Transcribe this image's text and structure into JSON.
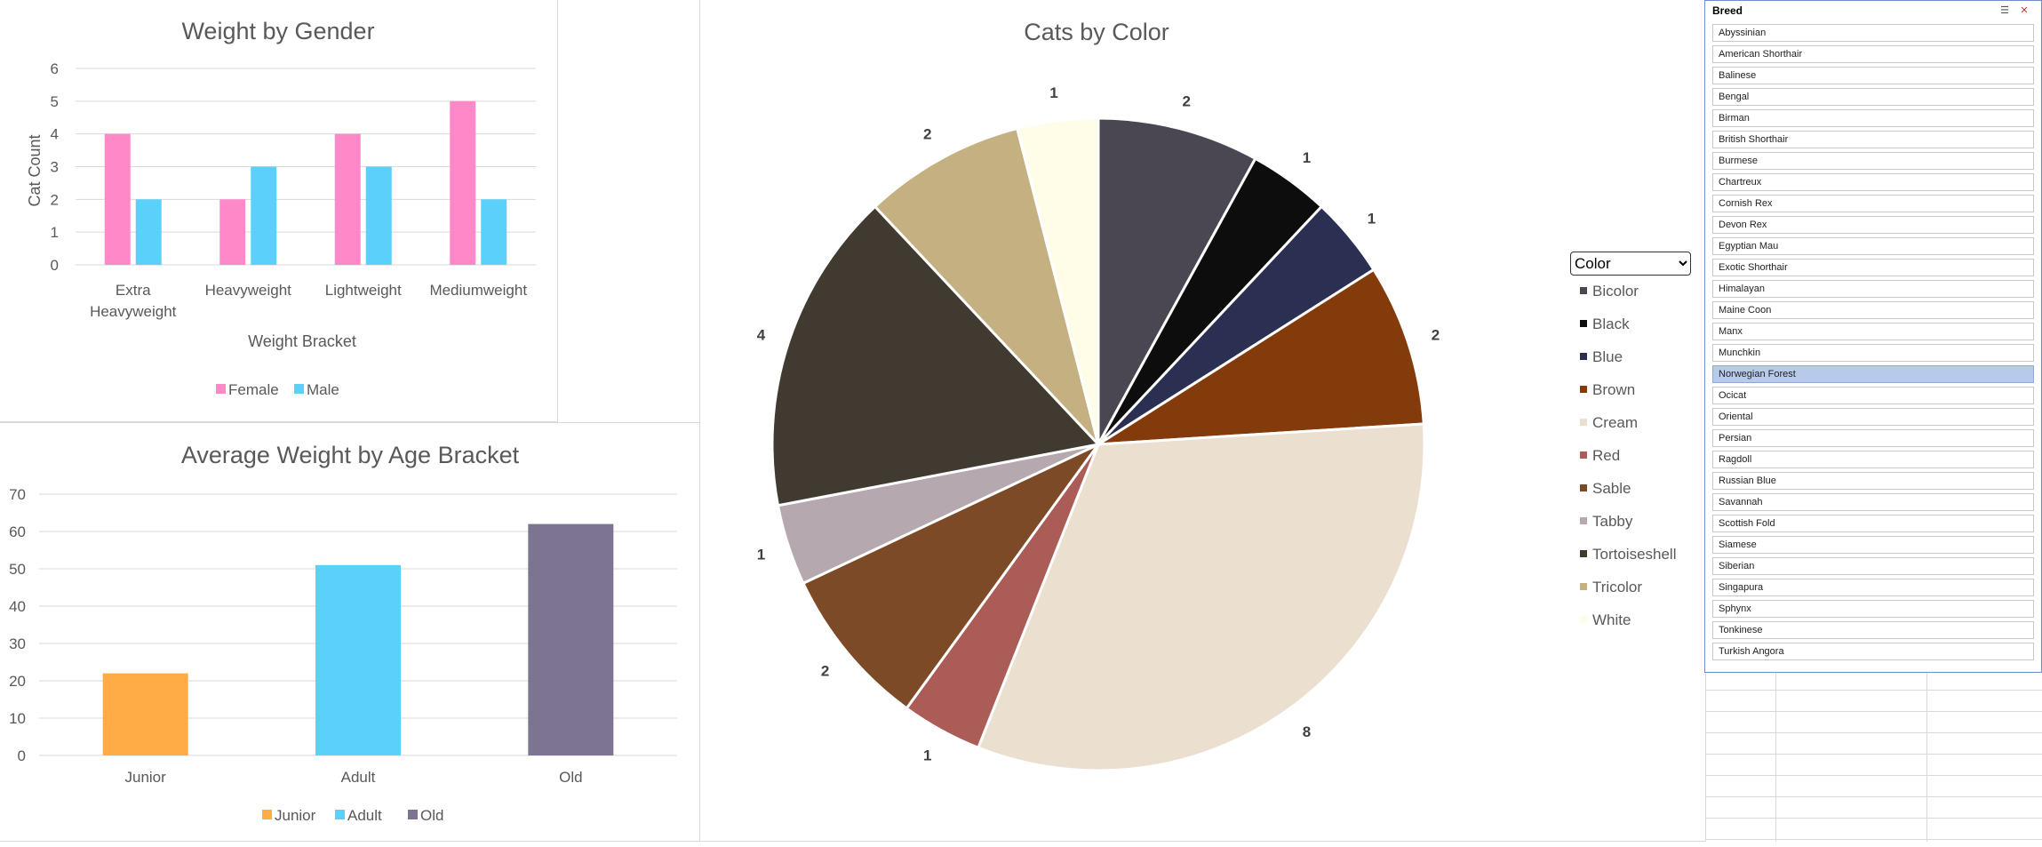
{
  "charts": {
    "gender": {
      "title": "Weight by Gender",
      "xlabel": "Weight Bracket",
      "ylabel": "Cat Count",
      "ymax": 6,
      "categories": [
        [
          "Extra",
          "Heavyweight"
        ],
        [
          "Heavyweight"
        ],
        [
          "Lightweight"
        ],
        [
          "Mediumweight"
        ]
      ],
      "series": [
        {
          "name": "Female",
          "color": "#ff88c8",
          "values": [
            4,
            2,
            4,
            5
          ]
        },
        {
          "name": "Male",
          "color": "#5bd0fa",
          "values": [
            2,
            3,
            3,
            2
          ]
        }
      ]
    },
    "age": {
      "title": "Average Weight by Age Bracket",
      "ymax": 70,
      "yticks": [
        0,
        10,
        20,
        30,
        40,
        50,
        60,
        70
      ],
      "categories": [
        "Junior",
        "Adult",
        "Old"
      ],
      "values": [
        22,
        51,
        62
      ],
      "colors": [
        "#ffac47",
        "#5bd0fa",
        "#7d7491"
      ],
      "legend": [
        "Junior",
        "Adult",
        "Old"
      ]
    },
    "color": {
      "title": "Cats by Color",
      "slices": [
        {
          "name": "Bicolor",
          "value": 2,
          "color": "#4a4752"
        },
        {
          "name": "Black",
          "value": 1,
          "color": "#0d0d0d"
        },
        {
          "name": "Blue",
          "value": 1,
          "color": "#2b2f52"
        },
        {
          "name": "Brown",
          "value": 2,
          "color": "#843b0c"
        },
        {
          "name": "Cream",
          "value": 8,
          "color": "#ebdfcf"
        },
        {
          "name": "Red",
          "value": 1,
          "color": "#ac5c56"
        },
        {
          "name": "Sable",
          "value": 2,
          "color": "#7c4a27"
        },
        {
          "name": "Tabby",
          "value": 1,
          "color": "#b5a8ae"
        },
        {
          "name": "Tortoiseshell",
          "value": 4,
          "color": "#403a30"
        },
        {
          "name": "Tricolor",
          "value": 2,
          "color": "#c4b081"
        },
        {
          "name": "White",
          "value": 1,
          "color": "#fffce8"
        }
      ]
    }
  },
  "chart_data": [
    {
      "type": "bar",
      "title": "Weight by Gender",
      "xlabel": "Weight Bracket",
      "ylabel": "Cat Count",
      "categories": [
        "Extra Heavyweight",
        "Heavyweight",
        "Lightweight",
        "Mediumweight"
      ],
      "series": [
        {
          "name": "Female",
          "values": [
            4,
            2,
            4,
            5
          ]
        },
        {
          "name": "Male",
          "values": [
            2,
            3,
            3,
            2
          ]
        }
      ],
      "ylim": [
        0,
        6
      ],
      "grid": true,
      "legend": "bottom"
    },
    {
      "type": "bar",
      "title": "Average Weight by Age Bracket",
      "categories": [
        "Junior",
        "Adult",
        "Old"
      ],
      "values": [
        22,
        51,
        62
      ],
      "ylim": [
        0,
        70
      ],
      "grid": true,
      "legend": "bottom"
    },
    {
      "type": "pie",
      "title": "Cats by Color",
      "labels": [
        "Bicolor",
        "Black",
        "Blue",
        "Brown",
        "Cream",
        "Red",
        "Sable",
        "Tabby",
        "Tortoiseshell",
        "Tricolor",
        "White"
      ],
      "values": [
        2,
        1,
        1,
        2,
        8,
        1,
        2,
        1,
        4,
        2,
        1
      ],
      "legend": "right"
    }
  ],
  "filter": {
    "label": "Color",
    "options": [
      "Color"
    ]
  },
  "slicer": {
    "title": "Breed",
    "multi_select_icon": "multi-select-icon",
    "clear_filter_icon": "clear-filter-icon",
    "selected": "Norwegian Forest",
    "items": [
      "Abyssinian",
      "American Shorthair",
      "Balinese",
      "Bengal",
      "Birman",
      "British Shorthair",
      "Burmese",
      "Chartreux",
      "Cornish Rex",
      "Devon Rex",
      "Egyptian Mau",
      "Exotic Shorthair",
      "Himalayan",
      "Maine Coon",
      "Manx",
      "Munchkin",
      "Norwegian Forest",
      "Ocicat",
      "Oriental",
      "Persian",
      "Ragdoll",
      "Russian Blue",
      "Savannah",
      "Scottish Fold",
      "Siamese",
      "Siberian",
      "Singapura",
      "Sphynx",
      "Tonkinese",
      "Turkish Angora"
    ]
  }
}
